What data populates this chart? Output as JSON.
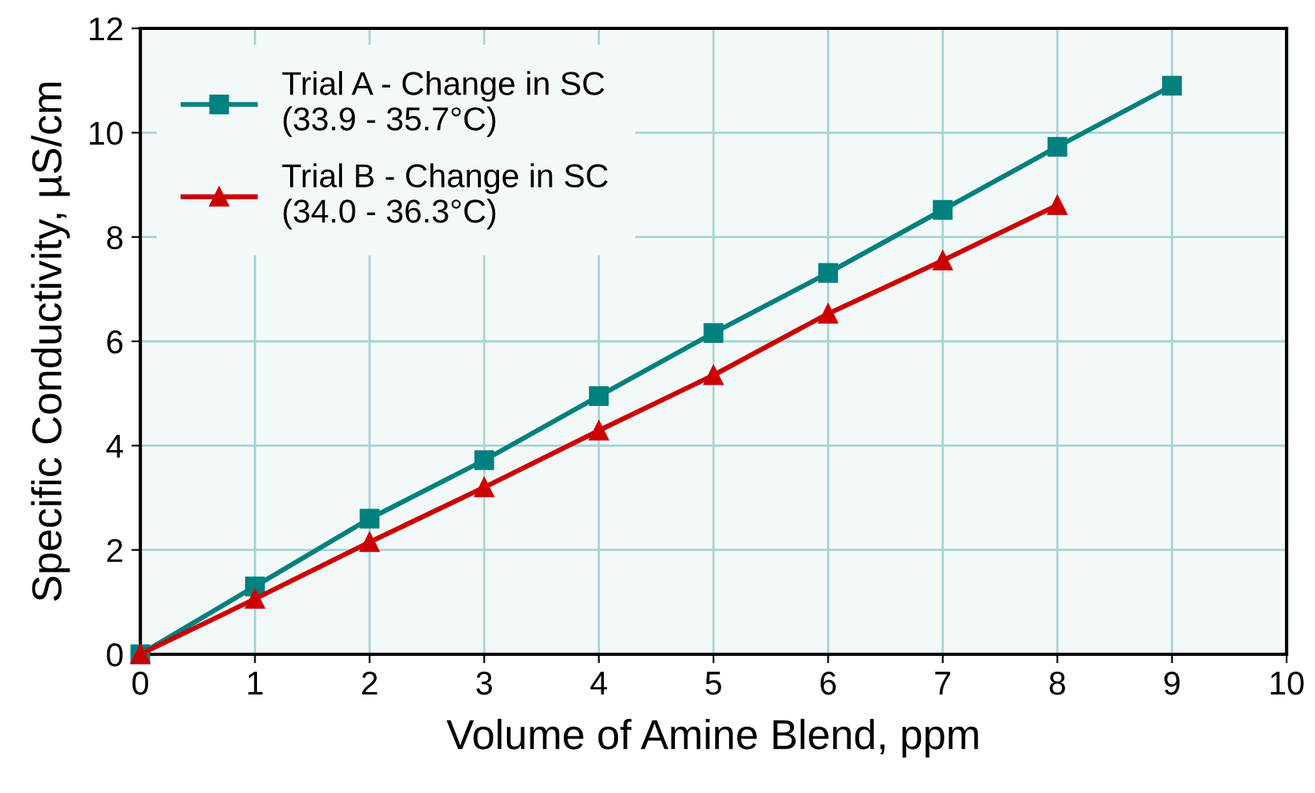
{
  "chart_data": {
    "type": "line",
    "xlabel": "Volume of Amine Blend, ppm",
    "ylabel": "Specific Conductivity, µS/cm",
    "x": [
      0,
      1,
      2,
      3,
      4,
      5,
      6,
      7,
      8,
      9
    ],
    "series": [
      {
        "name": "Trial A - Change in SC\n(33.9 - 35.7°C)",
        "color": "#00807f",
        "marker": "square",
        "values": [
          0,
          1.3,
          2.6,
          3.72,
          4.95,
          6.16,
          7.31,
          8.52,
          9.73,
          10.9
        ]
      },
      {
        "name": "Trial B - Change in SC\n(34.0 - 36.3°C)",
        "color": "#cc0000",
        "marker": "triangle",
        "x": [
          0,
          1,
          2,
          3,
          4,
          5,
          6,
          7,
          8
        ],
        "values": [
          0,
          1.06,
          2.15,
          3.2,
          4.29,
          5.35,
          6.53,
          7.55,
          8.61
        ]
      }
    ],
    "xlim": [
      0,
      10
    ],
    "ylim": [
      0,
      12
    ],
    "xticks": [
      0,
      1,
      2,
      3,
      4,
      5,
      6,
      7,
      8,
      9,
      10
    ],
    "yticks": [
      0,
      2,
      4,
      6,
      8,
      10,
      12
    ],
    "grid": true,
    "legend": "top left",
    "line_style": "solid"
  }
}
